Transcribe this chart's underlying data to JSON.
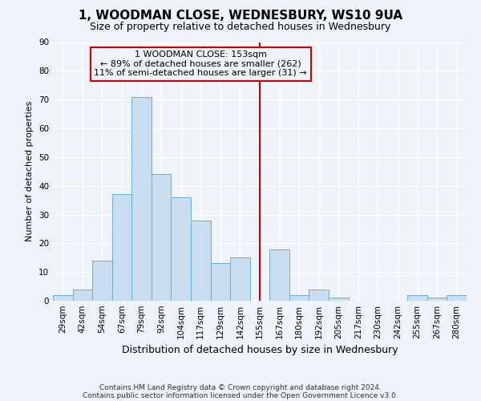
{
  "title": "1, WOODMAN CLOSE, WEDNESBURY, WS10 9UA",
  "subtitle": "Size of property relative to detached houses in Wednesbury",
  "xlabel": "Distribution of detached houses by size in Wednesbury",
  "ylabel": "Number of detached properties",
  "bar_labels": [
    "29sqm",
    "42sqm",
    "54sqm",
    "67sqm",
    "79sqm",
    "92sqm",
    "104sqm",
    "117sqm",
    "129sqm",
    "142sqm",
    "155sqm",
    "167sqm",
    "180sqm",
    "192sqm",
    "205sqm",
    "217sqm",
    "230sqm",
    "242sqm",
    "255sqm",
    "267sqm",
    "280sqm"
  ],
  "bar_values": [
    2,
    4,
    14,
    37,
    71,
    44,
    36,
    28,
    13,
    15,
    0,
    18,
    2,
    4,
    1,
    0,
    0,
    0,
    2,
    1,
    2
  ],
  "bar_color": "#c9ddf0",
  "bar_edge_color": "#6aaed6",
  "vline_x": 10.0,
  "vline_color": "#cc0000",
  "annotation_title": "1 WOODMAN CLOSE: 153sqm",
  "annotation_line1": "← 89% of detached houses are smaller (262)",
  "annotation_line2": "11% of semi-detached houses are larger (31) →",
  "annotation_box_color": "#cc0000",
  "ylim": [
    0,
    90
  ],
  "yticks": [
    0,
    10,
    20,
    30,
    40,
    50,
    60,
    70,
    80,
    90
  ],
  "footer1": "Contains HM Land Registry data © Crown copyright and database right 2024.",
  "footer2": "Contains public sector information licensed under the Open Government Licence v3.0.",
  "bg_color": "#eef2f9",
  "grid_color": "#ffffff",
  "title_fontsize": 11,
  "subtitle_fontsize": 9,
  "xlabel_fontsize": 9,
  "ylabel_fontsize": 8,
  "tick_fontsize": 7.5,
  "footer_fontsize": 6.5
}
